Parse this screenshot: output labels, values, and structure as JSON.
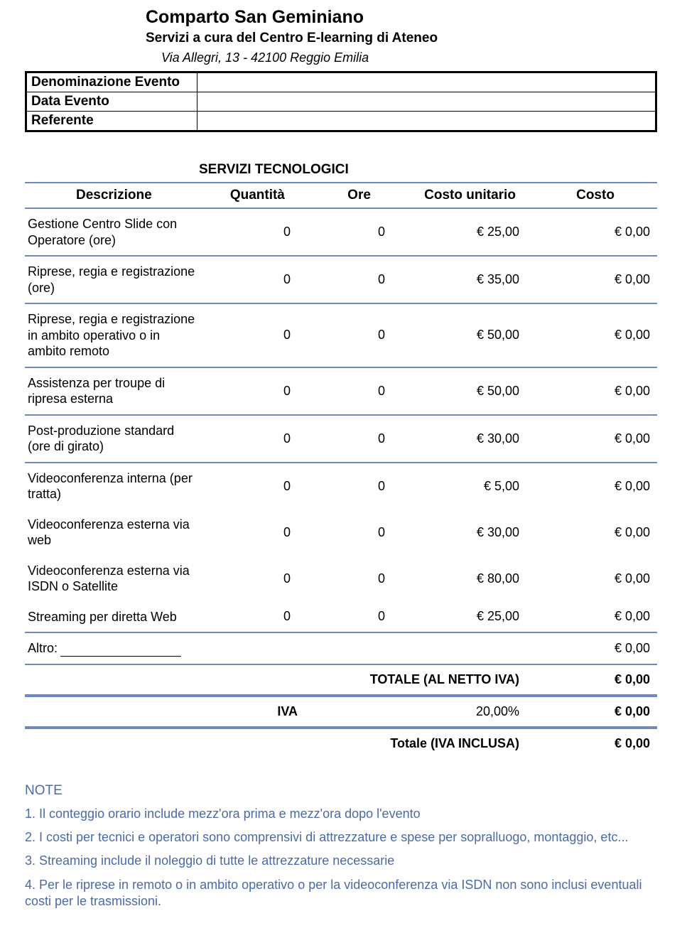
{
  "header": {
    "title": "Comparto San Geminiano",
    "subtitle": "Servizi a cura del Centro E-learning di Ateneo",
    "address": "Via Allegri, 13 - 42100 Reggio Emilia"
  },
  "event_fields": {
    "denominazione_label": "Denominazione Evento",
    "denominazione_value": "",
    "data_label": "Data Evento",
    "data_value": "",
    "referente_label": "Referente",
    "referente_value": ""
  },
  "section_title": "SERVIZI TECNOLOGICI",
  "table": {
    "columns": {
      "descrizione": "Descrizione",
      "quantita": "Quantità",
      "ore": "Ore",
      "costo_unitario": "Costo unitario",
      "costo": "Costo"
    },
    "rows": [
      {
        "desc": "Gestione Centro Slide con Operatore (ore)",
        "qty": "0",
        "ore": "0",
        "unit": "€ 25,00",
        "cost": "€ 0,00"
      },
      {
        "desc": "Riprese, regia e registrazione (ore)",
        "qty": "0",
        "ore": "0",
        "unit": "€ 35,00",
        "cost": "€ 0,00"
      },
      {
        "desc": "Riprese, regia e registrazione in ambito operativo o in ambito remoto",
        "qty": "0",
        "ore": "0",
        "unit": "€ 50,00",
        "cost": "€ 0,00"
      },
      {
        "desc": "Assistenza per troupe di ripresa esterna",
        "qty": "0",
        "ore": "0",
        "unit": "€ 50,00",
        "cost": "€ 0,00"
      },
      {
        "desc": "Post-produzione standard (ore di girato)",
        "qty": "0",
        "ore": "0",
        "unit": "€ 30,00",
        "cost": "€ 0,00"
      },
      {
        "desc": "Videoconferenza interna (per tratta)",
        "qty": "0",
        "ore": "0",
        "unit": "€ 5,00",
        "cost": "€ 0,00"
      },
      {
        "desc": "Videoconferenza esterna via web",
        "qty": "0",
        "ore": "0",
        "unit": "€ 30,00",
        "cost": "€ 0,00"
      },
      {
        "desc": "Videoconferenza esterna via ISDN o Satellite",
        "qty": "0",
        "ore": "0",
        "unit": "€ 80,00",
        "cost": "€ 0,00"
      },
      {
        "desc": "Streaming per diretta Web",
        "qty": "0",
        "ore": "0",
        "unit": "€ 25,00",
        "cost": "€ 0,00"
      }
    ],
    "altro_label": "Altro:",
    "altro_cost": "€ 0,00"
  },
  "summary": {
    "total_net_label": "TOTALE (AL NETTO IVA)",
    "total_net_value": "€ 0,00",
    "iva_label": "IVA",
    "iva_rate": "20,00%",
    "iva_value": "€ 0,00",
    "total_gross_label": "Totale  (IVA INCLUSA)",
    "total_gross_value": "€ 0,00"
  },
  "notes": {
    "heading": "NOTE",
    "items": [
      "1. Il conteggio orario include mezz'ora prima e mezz'ora dopo l'evento",
      "2.  I costi per tecnici e operatori sono comprensivi di attrezzature e spese per sopralluogo, montaggio, etc...",
      "3. Streaming include il noleggio di tutte le attrezzature necessarie",
      "4. Per le riprese in remoto o in ambito operativo o per la videoconferenza via ISDN non sono inclusi eventuali costi per le trasmissioni."
    ]
  },
  "colors": {
    "accent": "#6b89bf",
    "note_text": "#4a6aa8"
  }
}
